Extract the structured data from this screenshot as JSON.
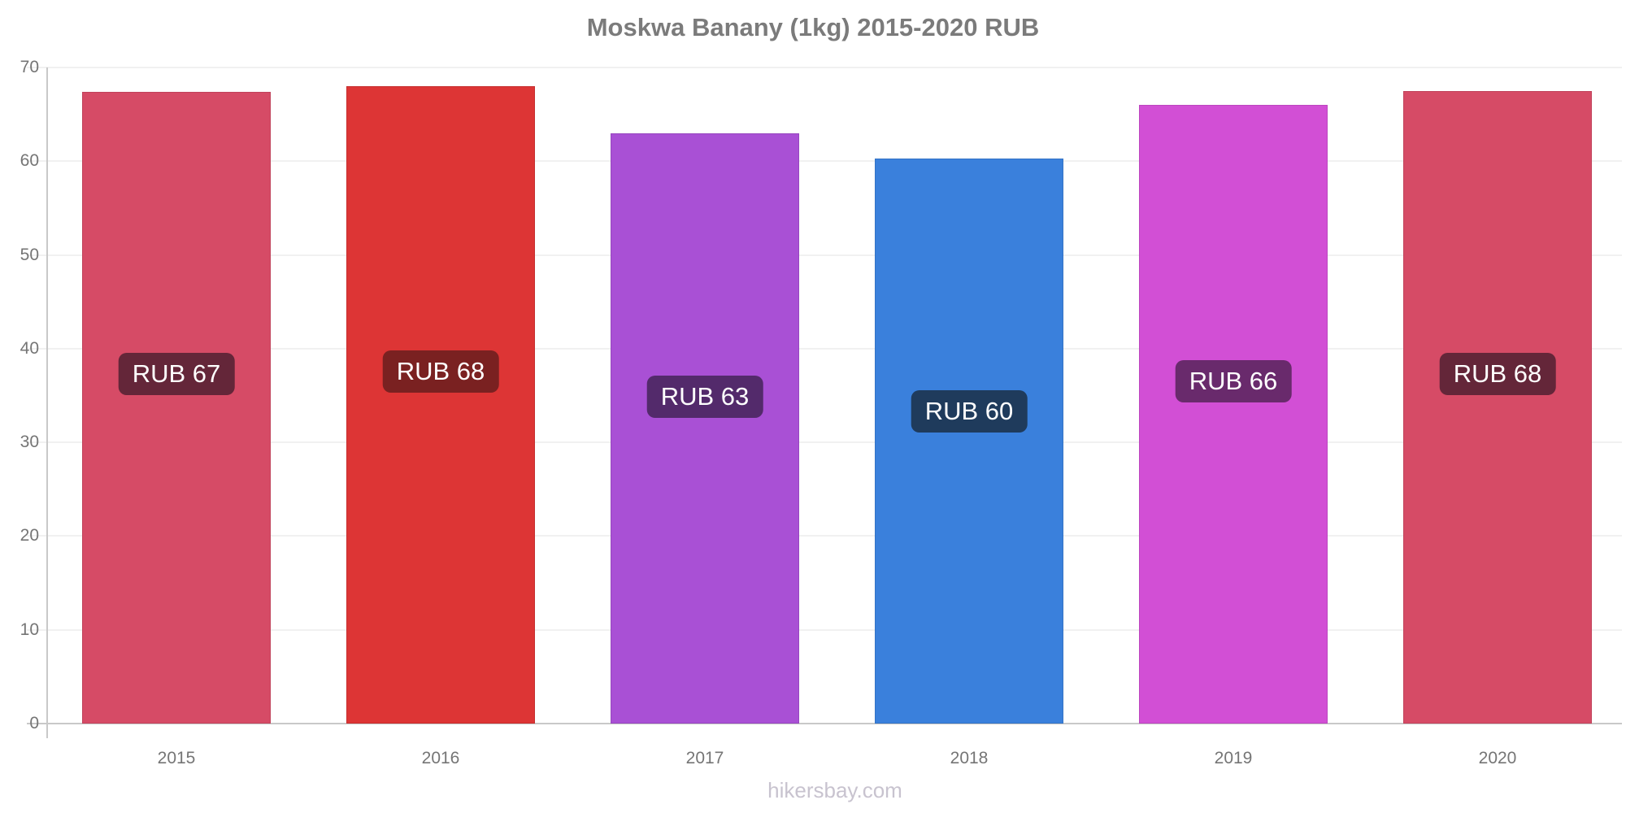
{
  "title": "Moskwa Banany (1kg) 2015-2020 RUB",
  "watermark": "hikersbay.com",
  "chart_data": {
    "type": "bar",
    "title": "Moskwa Banany (1kg) 2015-2020 RUB",
    "currency": "RUB",
    "categories": [
      "2015",
      "2016",
      "2017",
      "2018",
      "2019",
      "2020"
    ],
    "values": [
      67.4,
      68,
      63,
      60.3,
      66,
      67.5
    ],
    "bar_labels": [
      "RUB 67",
      "RUB 68",
      "RUB 63",
      "RUB 60",
      "RUB 66",
      "RUB 68"
    ],
    "xlabel": "",
    "ylabel": "",
    "ylim": [
      0,
      70
    ],
    "yticks": [
      0,
      10,
      20,
      30,
      40,
      50,
      60,
      70
    ],
    "grid": true,
    "legend": false,
    "bar_colors": [
      "#d64b66",
      "#dd3535",
      "#a950d5",
      "#3a80dc",
      "#d24fd5",
      "#d64b66"
    ],
    "label_bg_colors": [
      "#642639",
      "#7a2121",
      "#532a6b",
      "#1f3b5c",
      "#692a6c",
      "#642639"
    ]
  }
}
